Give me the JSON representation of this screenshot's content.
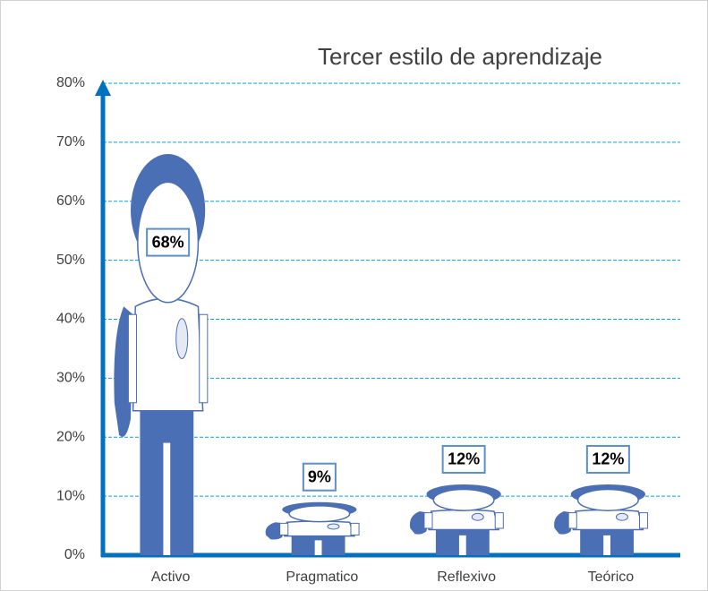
{
  "chart_data": {
    "type": "pictograph",
    "title": "Tercer estilo de aprendizaje",
    "categories": [
      "Activo",
      "Pragmatico",
      "Reflexivo",
      "Teórico"
    ],
    "values": [
      68,
      9,
      12,
      12
    ],
    "value_labels": [
      "68%",
      "9%",
      "12%",
      "12%"
    ],
    "color": "#4a6fb5",
    "ylim": [
      0,
      80
    ],
    "yticks": [
      {
        "value": 0,
        "label": "0%"
      },
      {
        "value": 10,
        "label": "10%"
      },
      {
        "value": 20,
        "label": "20%"
      },
      {
        "value": 30,
        "label": "30%"
      },
      {
        "value": 40,
        "label": "40%"
      },
      {
        "value": 50,
        "label": "50%"
      },
      {
        "value": 60,
        "label": "60%"
      },
      {
        "value": 70,
        "label": "70%"
      },
      {
        "value": 80,
        "label": "80%"
      }
    ],
    "grid": true
  }
}
